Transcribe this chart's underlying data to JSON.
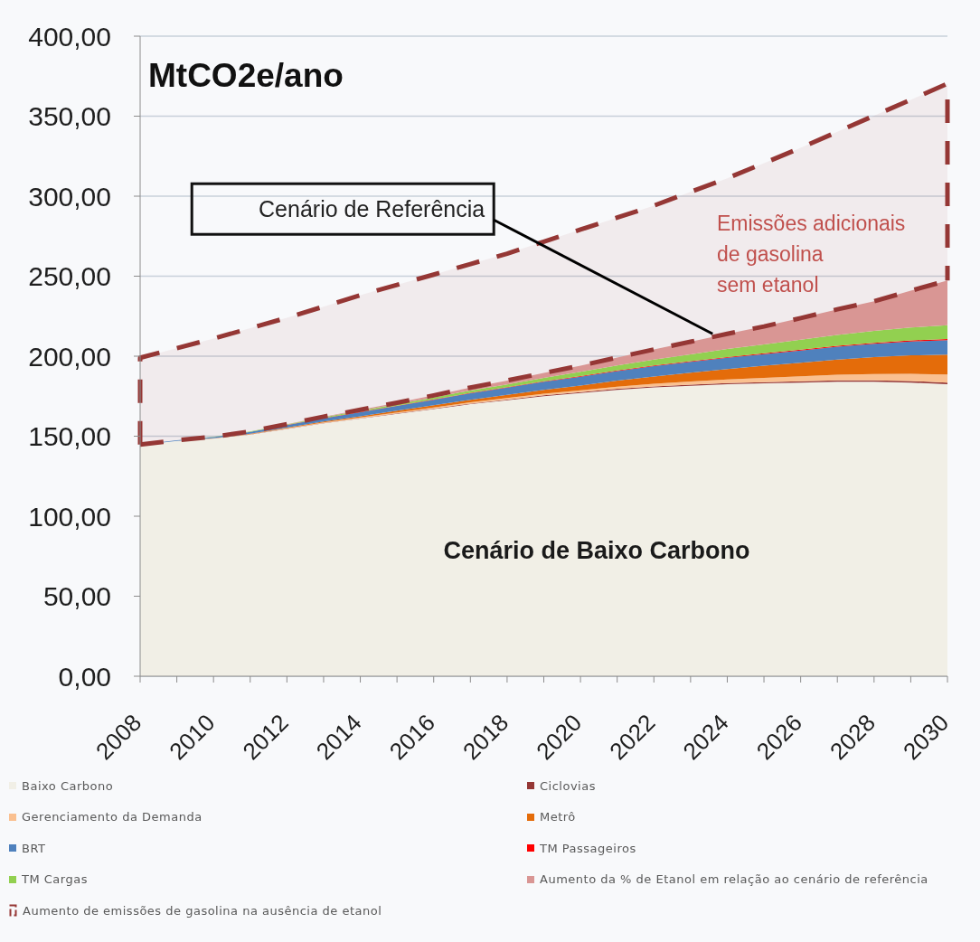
{
  "chart_data": {
    "type": "area",
    "stacked": true,
    "ylabel": "MtCO2e/ano",
    "x": [
      2008,
      2009,
      2010,
      2011,
      2012,
      2013,
      2014,
      2015,
      2016,
      2017,
      2018,
      2019,
      2020,
      2021,
      2022,
      2023,
      2024,
      2025,
      2026,
      2027,
      2028,
      2029,
      2030
    ],
    "xlim": [
      2008,
      2030
    ],
    "xticks": [
      2008,
      {
        "value": 2009,
        "label": null
      },
      2010,
      {
        "value": 2011,
        "label": null
      },
      2012,
      {
        "value": 2013,
        "label": null
      },
      2014,
      {
        "value": 2015,
        "label": null
      },
      2016,
      {
        "value": 2017,
        "label": null
      },
      2018,
      {
        "value": 2019,
        "label": null
      },
      2020,
      {
        "value": 2021,
        "label": null
      },
      2022,
      {
        "value": 2023,
        "label": null
      },
      2024,
      {
        "value": 2025,
        "label": null
      },
      2026,
      {
        "value": 2027,
        "label": null
      },
      2028,
      {
        "value": 2029,
        "label": null
      },
      2030
    ],
    "ylim": [
      0,
      400
    ],
    "yticks": [
      {
        "value": 0,
        "label": "0,00"
      },
      {
        "value": 50,
        "label": "50,00"
      },
      {
        "value": 100,
        "label": "100,00"
      },
      {
        "value": 150,
        "label": "150,00"
      },
      {
        "value": 200,
        "label": "200,00"
      },
      {
        "value": 250,
        "label": "250,00"
      },
      {
        "value": 300,
        "label": "300,00"
      },
      {
        "value": 350,
        "label": "350,00"
      },
      {
        "value": 400,
        "label": "400,00"
      }
    ],
    "grid": "y",
    "legend": "bottom",
    "series": [
      {
        "name": "Baixo Carbono",
        "color": "#f1efe6",
        "values": [
          144.5,
          147,
          148.5,
          151,
          154.5,
          158,
          161,
          164,
          167,
          170,
          172.5,
          175,
          177,
          179,
          180.5,
          181.5,
          182.5,
          183,
          183.5,
          184,
          184,
          183.5,
          182.5
        ]
      },
      {
        "name": "Ciclovias",
        "color": "#953735",
        "values": [
          0,
          0,
          0,
          0.1,
          0.1,
          0.2,
          0.2,
          0.3,
          0.3,
          0.4,
          0.4,
          0.5,
          0.5,
          0.6,
          0.6,
          0.7,
          0.7,
          0.8,
          0.8,
          0.9,
          0.9,
          1,
          1
        ]
      },
      {
        "name": "Gerenciamento da Demanda",
        "color": "#fac090",
        "values": [
          0,
          0,
          0.1,
          0.2,
          0.3,
          0.4,
          0.5,
          0.6,
          0.7,
          0.8,
          0.9,
          1,
          1.2,
          1.4,
          1.7,
          2,
          2.3,
          2.7,
          3.1,
          3.5,
          4,
          4.5,
          5
        ]
      },
      {
        "name": "Metrô",
        "color": "#e46c0a",
        "values": [
          0,
          0,
          0.1,
          0.2,
          0.4,
          0.6,
          0.8,
          1,
          1.3,
          1.6,
          2,
          2.5,
          3,
          3.7,
          4.5,
          5.5,
          6.5,
          7.5,
          8.5,
          9.5,
          10.5,
          11.5,
          12.5
        ]
      },
      {
        "name": "BRT",
        "color": "#4f81bd",
        "values": [
          0.3,
          0.5,
          0.8,
          1.2,
          1.6,
          2,
          2.5,
          3,
          3.5,
          4,
          4.5,
          5,
          5.5,
          6,
          6.5,
          6.7,
          7,
          7.3,
          7.6,
          8,
          8.3,
          8.7,
          9
        ]
      },
      {
        "name": "TM Passageiros",
        "color": "#ff0000",
        "values": [
          0,
          0,
          0,
          0,
          0.1,
          0.1,
          0.2,
          0.2,
          0.2,
          0.3,
          0.3,
          0.3,
          0.4,
          0.4,
          0.4,
          0.5,
          0.5,
          0.5,
          0.6,
          0.6,
          0.7,
          0.7,
          0.8
        ]
      },
      {
        "name": "TM Cargas",
        "color": "#92d050",
        "values": [
          0,
          0,
          0.1,
          0.2,
          0.3,
          0.5,
          0.7,
          0.9,
          1.2,
          1.5,
          1.8,
          2.2,
          2.6,
          3.1,
          3.7,
          4.3,
          5,
          5.6,
          6.2,
          6.8,
          7.4,
          8,
          8.5
        ]
      },
      {
        "name": "Aumento da % de Etanol em relação ao cenário de referência",
        "color": "#d99694",
        "values": [
          0,
          0,
          0,
          0.1,
          0.2,
          0.4,
          0.6,
          0.9,
          1.3,
          1.8,
          2.4,
          3,
          3.9,
          5,
          6.3,
          7.8,
          9.5,
          11.2,
          13.5,
          16,
          18.5,
          23,
          28
        ]
      },
      {
        "name": "Aumento de emissões de gasolina na ausência de etanol",
        "color": "#953735",
        "line_style": "dashed",
        "values": [
          54.2,
          57.5,
          61.4,
          64.5,
          66.5,
          68.8,
          71.6,
          73.7,
          75.5,
          77.2,
          79.3,
          82.1,
          85,
          87.4,
          89.9,
          93.7,
          97.2,
          102,
          106.4,
          110.9,
          116,
          119.3,
          123
        ]
      }
    ],
    "annotations": [
      {
        "text": "Cenário de Referência",
        "x": 2023.6,
        "y": 214
      },
      "Emissões adicionais\nde gasolina\nsem etanol",
      "Cenário de Baixo Carbono"
    ]
  }
}
